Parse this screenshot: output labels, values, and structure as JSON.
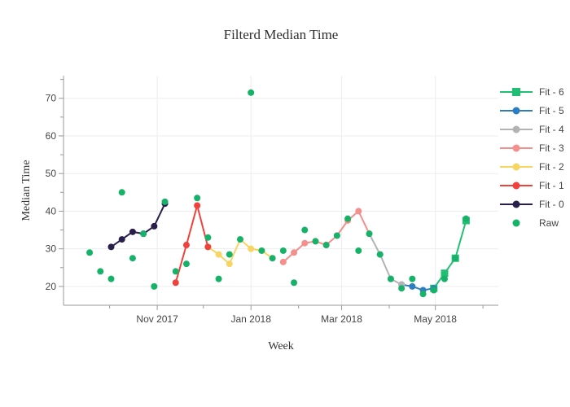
{
  "title": "Filterd Median Time",
  "axes": {
    "x": {
      "label": "Week",
      "ticks": [
        {
          "date": "2017-11-01",
          "label": "Nov 2017"
        },
        {
          "date": "2018-01-01",
          "label": "Jan 2018"
        },
        {
          "date": "2018-03-01",
          "label": "Mar 2018"
        },
        {
          "date": "2018-05-01",
          "label": "May 2018"
        }
      ],
      "minor_ticks": [
        "2017-10-01",
        "2017-12-01",
        "2018-02-01",
        "2018-04-01",
        "2018-06-01"
      ]
    },
    "y": {
      "label": "Median Time",
      "ticks": [
        20,
        30,
        40,
        50,
        60,
        70
      ],
      "minor_ticks": [
        15,
        25,
        35,
        45,
        55,
        65,
        75
      ]
    }
  },
  "colors": {
    "grid": "#ebedef",
    "axis": "#999999",
    "raw": "#17b26a",
    "fit0": "#2a1e4b",
    "fit1": "#f0413c",
    "fit2": "#f8d462",
    "fit3": "#f58f8e",
    "fit4": "#b3b3b6",
    "fit5": "#2e7ebf",
    "fit6": "#21bf73"
  },
  "chart_data": {
    "type": "line",
    "title": "Filterd Median Time",
    "xlabel": "Week",
    "ylabel": "Median Time",
    "x_range": [
      "2017-09-01",
      "2018-06-11"
    ],
    "y_range": [
      15,
      76
    ],
    "grid": true,
    "legend_position": "right",
    "series": [
      {
        "name": "Raw",
        "color": "#17b26a",
        "mode": "markers",
        "marker": "circle",
        "points": [
          [
            "2017-09-18",
            29
          ],
          [
            "2017-09-25",
            24
          ],
          [
            "2017-10-02",
            22
          ],
          [
            "2017-10-09",
            45
          ],
          [
            "2017-10-16",
            27.5
          ],
          [
            "2017-10-23",
            34
          ],
          [
            "2017-10-30",
            20
          ],
          [
            "2017-11-06",
            42.5
          ],
          [
            "2017-11-13",
            24
          ],
          [
            "2017-11-20",
            26
          ],
          [
            "2017-11-27",
            43.5
          ],
          [
            "2017-12-04",
            33
          ],
          [
            "2017-12-11",
            22
          ],
          [
            "2017-12-18",
            28.5
          ],
          [
            "2017-12-25",
            32.5
          ],
          [
            "2018-01-01",
            71.5
          ],
          [
            "2018-01-08",
            29.5
          ],
          [
            "2018-01-15",
            27.5
          ],
          [
            "2018-01-22",
            29.5
          ],
          [
            "2018-01-29",
            21
          ],
          [
            "2018-02-05",
            35
          ],
          [
            "2018-02-12",
            32
          ],
          [
            "2018-02-19",
            31
          ],
          [
            "2018-02-26",
            33.5
          ],
          [
            "2018-03-05",
            38
          ],
          [
            "2018-03-12",
            29.5
          ],
          [
            "2018-03-19",
            34
          ],
          [
            "2018-03-26",
            28.5
          ],
          [
            "2018-04-02",
            22
          ],
          [
            "2018-04-09",
            19.5
          ],
          [
            "2018-04-16",
            22
          ],
          [
            "2018-04-23",
            18
          ],
          [
            "2018-04-30",
            19
          ],
          [
            "2018-05-07",
            22
          ],
          [
            "2018-05-14",
            27.5
          ],
          [
            "2018-05-21",
            38
          ]
        ]
      },
      {
        "name": "Fit - 0",
        "color": "#2a1e4b",
        "mode": "lines+markers",
        "marker": "circle",
        "points": [
          [
            "2017-10-02",
            30.5
          ],
          [
            "2017-10-09",
            32.5
          ],
          [
            "2017-10-16",
            34.5
          ],
          [
            "2017-10-23",
            34
          ],
          [
            "2017-10-30",
            36
          ],
          [
            "2017-11-06",
            42
          ]
        ]
      },
      {
        "name": "Fit - 1",
        "color": "#f0413c",
        "mode": "lines+markers",
        "marker": "circle",
        "points": [
          [
            "2017-11-13",
            21
          ],
          [
            "2017-11-20",
            31
          ],
          [
            "2017-11-27",
            41.5
          ],
          [
            "2017-12-04",
            30.5
          ]
        ]
      },
      {
        "name": "Fit - 2",
        "color": "#f8d462",
        "mode": "lines+markers",
        "marker": "circle",
        "points": [
          [
            "2017-12-04",
            30.5
          ],
          [
            "2017-12-11",
            28.5
          ],
          [
            "2017-12-18",
            26
          ],
          [
            "2017-12-25",
            32.5
          ],
          [
            "2018-01-01",
            30
          ],
          [
            "2018-01-08",
            29.5
          ],
          [
            "2018-01-15",
            27.5
          ]
        ]
      },
      {
        "name": "Fit - 3",
        "color": "#f58f8e",
        "mode": "lines+markers",
        "marker": "circle",
        "points": [
          [
            "2018-01-22",
            26.5
          ],
          [
            "2018-01-29",
            29
          ],
          [
            "2018-02-05",
            31.5
          ],
          [
            "2018-02-12",
            32
          ],
          [
            "2018-02-19",
            31
          ],
          [
            "2018-02-26",
            33.5
          ],
          [
            "2018-03-05",
            37.5
          ],
          [
            "2018-03-12",
            40
          ],
          [
            "2018-03-19",
            34
          ]
        ]
      },
      {
        "name": "Fit - 4",
        "color": "#b3b3b6",
        "mode": "lines+markers",
        "marker": "circle",
        "points": [
          [
            "2018-03-19",
            34
          ],
          [
            "2018-03-26",
            28.5
          ],
          [
            "2018-04-02",
            22
          ],
          [
            "2018-04-09",
            20.5
          ]
        ]
      },
      {
        "name": "Fit - 5",
        "color": "#2e7ebf",
        "mode": "lines+markers",
        "marker": "circle",
        "points": [
          [
            "2018-04-09",
            20.5
          ],
          [
            "2018-04-16",
            20
          ],
          [
            "2018-04-23",
            19
          ],
          [
            "2018-04-30",
            19.5
          ]
        ]
      },
      {
        "name": "Fit - 6",
        "color": "#21bf73",
        "mode": "lines+markers",
        "marker": "square",
        "points": [
          [
            "2018-04-30",
            19.5
          ],
          [
            "2018-05-07",
            23.5
          ],
          [
            "2018-05-14",
            27.5
          ],
          [
            "2018-05-21",
            37.5
          ]
        ]
      }
    ]
  }
}
